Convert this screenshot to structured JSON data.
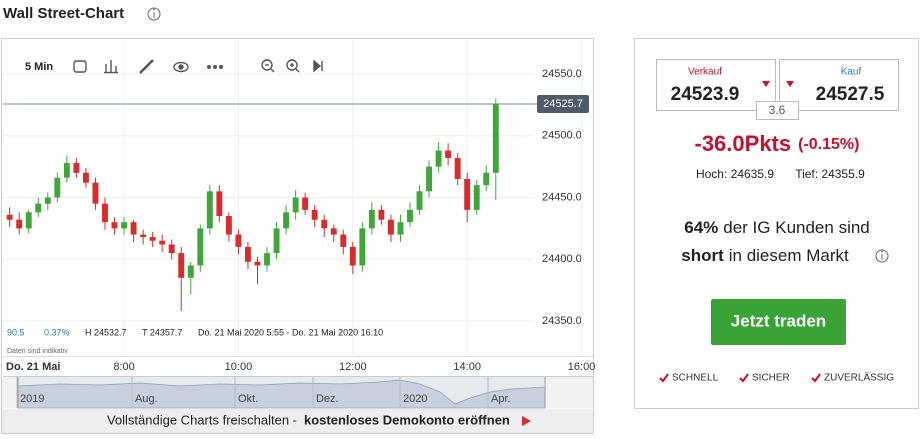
{
  "header": {
    "title": "Wall Street-Chart"
  },
  "toolbar": {
    "interval": "5 Min"
  },
  "chart_data": {
    "type": "candlestick",
    "x": [
      360,
      370,
      380,
      390,
      400,
      410,
      420,
      430,
      440,
      450,
      460,
      470,
      480,
      490,
      500,
      510,
      520,
      530,
      540,
      550,
      560,
      570,
      580,
      590,
      600,
      610,
      620,
      630,
      640,
      650,
      660,
      670,
      680,
      690,
      700,
      710,
      720,
      730,
      740,
      750,
      760,
      770,
      780,
      790,
      800,
      810,
      820,
      830,
      840,
      850,
      860,
      870
    ],
    "open": [
      24436,
      24432,
      24425,
      24438,
      24445,
      24450,
      24466,
      24478,
      24470,
      24462,
      24445,
      24430,
      24425,
      24430,
      24420,
      24418,
      24415,
      24412,
      24405,
      24385,
      24395,
      24425,
      24455,
      24435,
      24420,
      24410,
      24398,
      24395,
      24405,
      24425,
      24438,
      24450,
      24440,
      24432,
      24425,
      24420,
      24410,
      24395,
      24425,
      24440,
      24432,
      24420,
      24430,
      24440,
      24455,
      24475,
      24488,
      24482,
      24465,
      24440,
      24460,
      24470
    ],
    "high": [
      24442,
      24438,
      24440,
      24450,
      24454,
      24470,
      24484,
      24482,
      24474,
      24466,
      24450,
      24434,
      24434,
      24432,
      24424,
      24422,
      24420,
      24416,
      24410,
      24398,
      24428,
      24460,
      24460,
      24438,
      24424,
      24414,
      24402,
      24410,
      24430,
      24444,
      24456,
      24454,
      24444,
      24436,
      24428,
      24424,
      24414,
      24430,
      24446,
      24444,
      24436,
      24436,
      24446,
      24460,
      24480,
      24495,
      24494,
      24486,
      24470,
      24464,
      24476,
      24530
    ],
    "low": [
      24426,
      24420,
      24421,
      24434,
      24440,
      24446,
      24462,
      24466,
      24458,
      24440,
      24424,
      24420,
      24420,
      24414,
      24412,
      24410,
      24406,
      24400,
      24358,
      24372,
      24390,
      24420,
      24430,
      24414,
      24404,
      24392,
      24380,
      24390,
      24400,
      24420,
      24432,
      24436,
      24426,
      24418,
      24414,
      24404,
      24388,
      24390,
      24420,
      24428,
      24414,
      24414,
      24426,
      24436,
      24450,
      24470,
      24476,
      24460,
      24430,
      24436,
      24455,
      24448
    ],
    "close": [
      24432,
      24425,
      24438,
      24445,
      24450,
      24466,
      24478,
      24470,
      24462,
      24445,
      24430,
      24425,
      24430,
      24420,
      24418,
      24415,
      24412,
      24405,
      24385,
      24395,
      24425,
      24455,
      24435,
      24420,
      24410,
      24398,
      24395,
      24405,
      24425,
      24438,
      24450,
      24440,
      24432,
      24425,
      24420,
      24410,
      24395,
      24425,
      24440,
      24432,
      24420,
      24430,
      24440,
      24455,
      24475,
      24488,
      24482,
      24465,
      24440,
      24460,
      24470,
      24525.7
    ],
    "up_color": "#3fa63a",
    "down_color": "#d92b2b",
    "xlim": [
      353,
      972
    ],
    "xticks": [
      {
        "value": 480,
        "label": "8:00"
      },
      {
        "value": 600,
        "label": "10:00"
      },
      {
        "value": 720,
        "label": "12:00"
      },
      {
        "value": 840,
        "label": "14:00"
      },
      {
        "value": 960,
        "label": "16:00"
      }
    ],
    "date_label": "Do. 21 Mai",
    "ylim": [
      24322.5,
      24577.5
    ],
    "yticks": [
      {
        "value": 24350,
        "label": "24350.0"
      },
      {
        "value": 24400,
        "label": "24400.0"
      },
      {
        "value": 24450,
        "label": "24450.0"
      },
      {
        "value": 24500,
        "label": "24500.0"
      },
      {
        "value": 24550,
        "label": "24550.0"
      }
    ],
    "grid": true,
    "last_price": 24525.7
  },
  "info": {
    "change": "90.5",
    "change_pct": "0.37%",
    "high": "H 24532.7",
    "low": "T 24357.7",
    "range": "Do. 21 Mai 2020 5:55 - Do. 21 Mai 2020 16:10",
    "note": "Daten sind indikativ"
  },
  "navigator": {
    "labels": [
      "2019",
      "Aug.",
      "Okt.",
      "Dez.",
      "2020",
      "Apr."
    ]
  },
  "footer": {
    "text": "Vollständige Charts freischalten -",
    "link": "kostenloses Demokonto eröffnen"
  },
  "panel": {
    "sell_label": "Verkauf",
    "sell_price": "24523.9",
    "buy_label": "Kauf",
    "buy_price": "24527.5",
    "spread": "3.6",
    "change": "-36.0Pkts",
    "change_pct": "(-0.15%)",
    "high": "Hoch: 24635.9",
    "low": "Tief: 24355.9",
    "sentiment_pct": "64%",
    "sentiment_text": "der IG Kunden sind",
    "sentiment_side": "short",
    "sentiment_rest": "in diesem Markt",
    "button": "Jetzt traden",
    "features": [
      "SCHNELL",
      "SICHER",
      "ZUVERLÄSSIG"
    ]
  }
}
